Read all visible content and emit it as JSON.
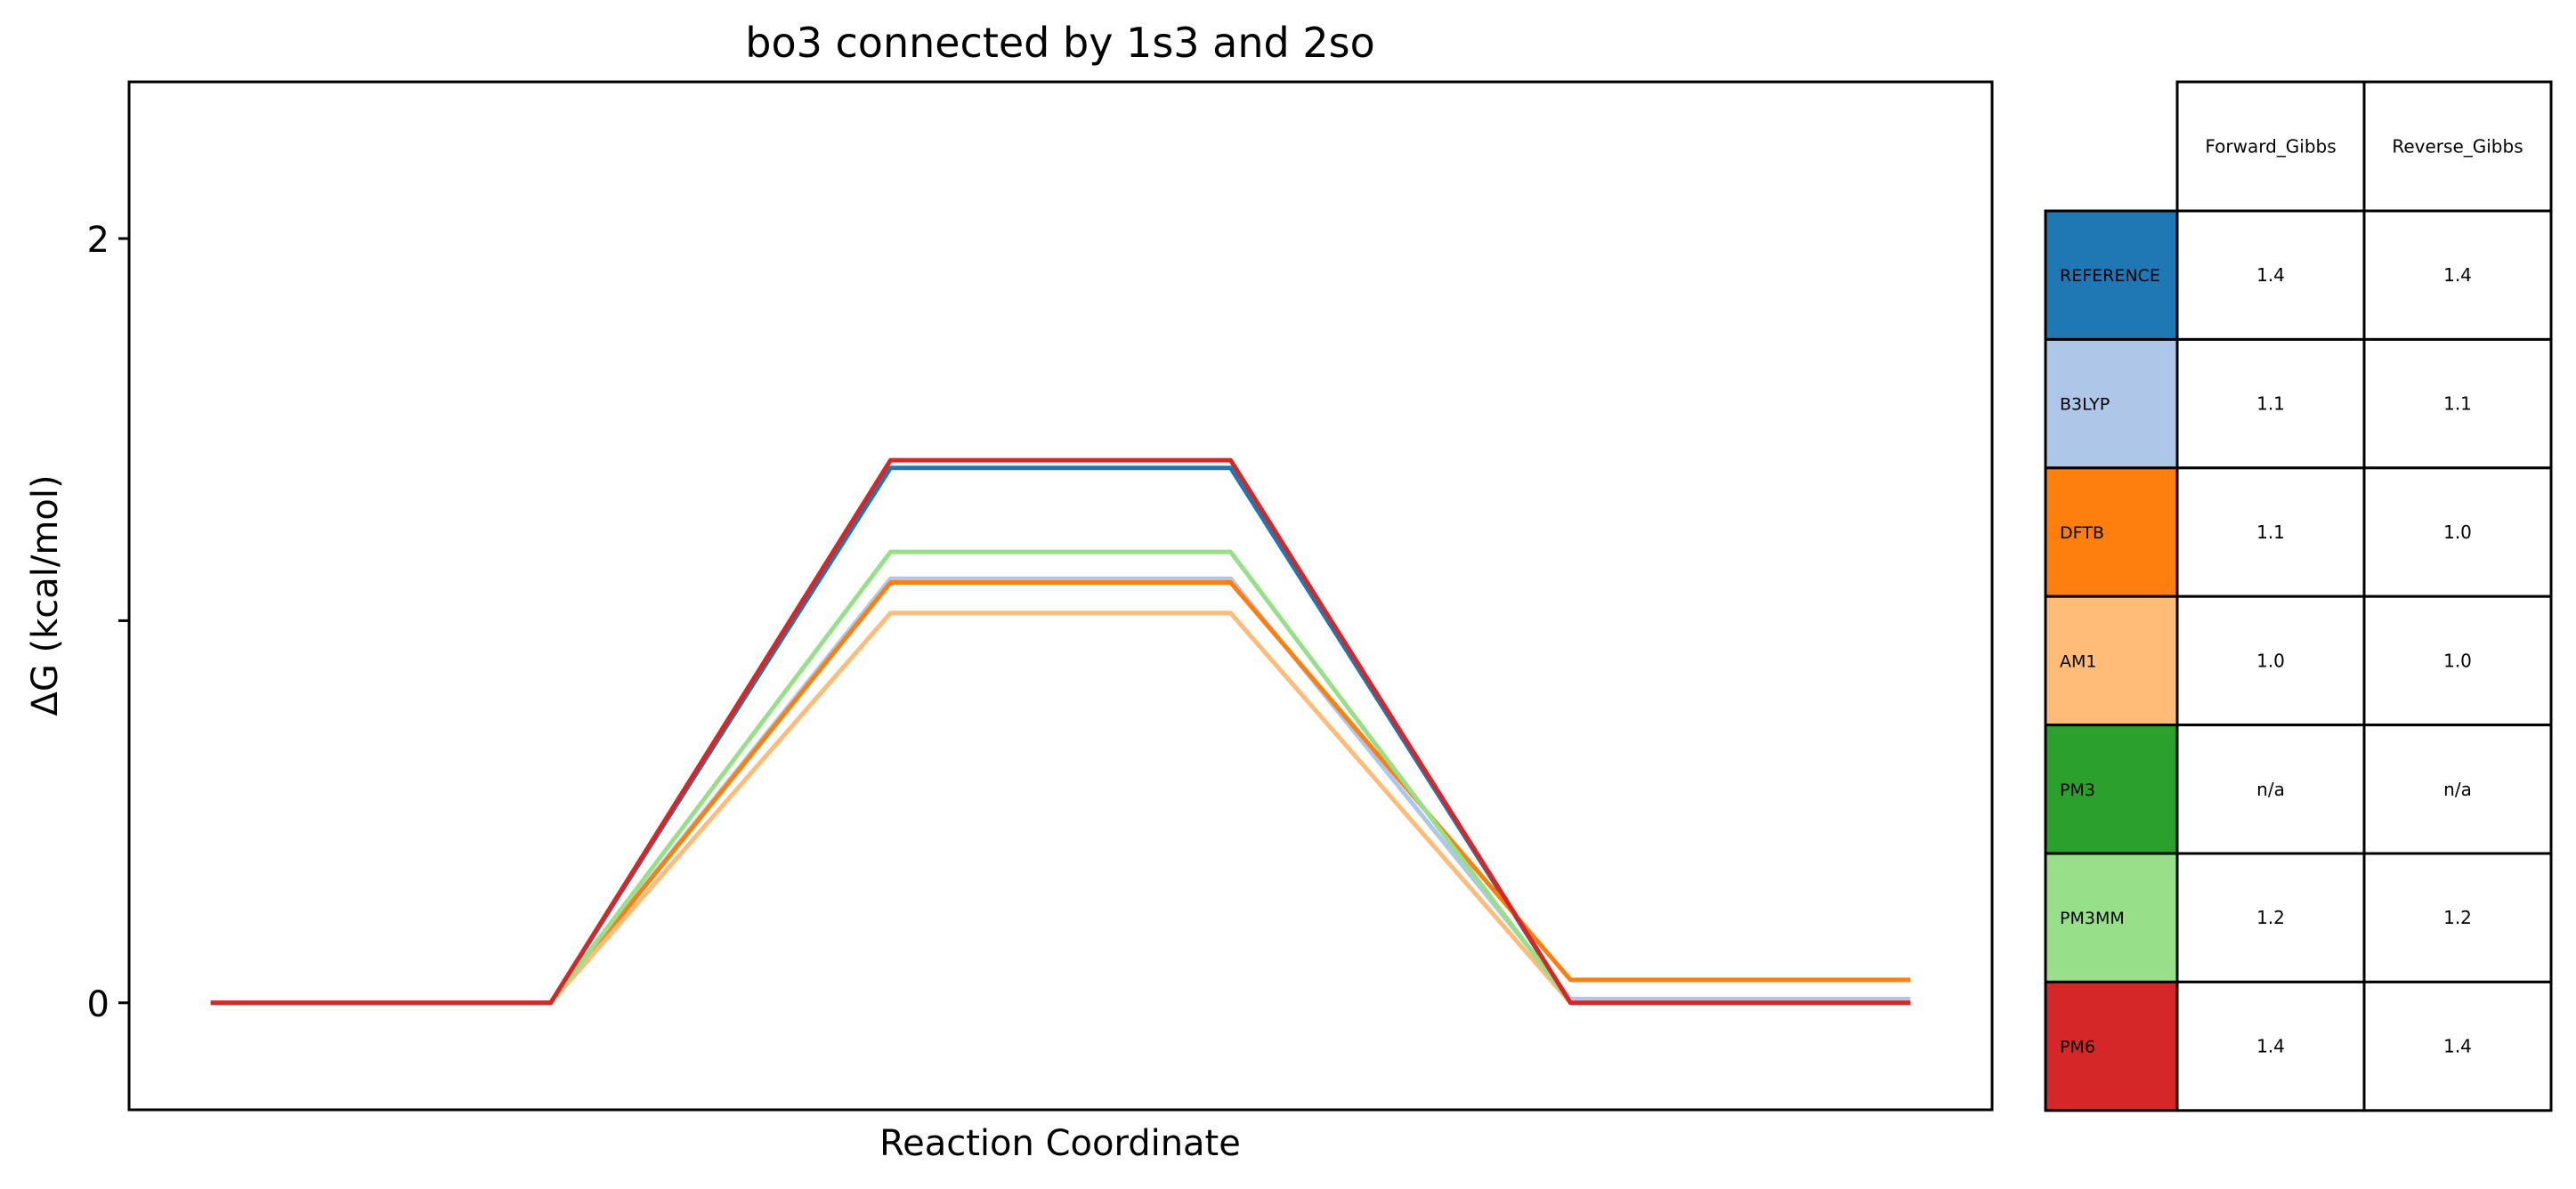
{
  "chart_data": {
    "type": "line",
    "title": "bo3 connected by 1s3 and 2so",
    "xlabel": "Reaction Coordinate",
    "ylabel": "ΔG (kcal/mol)",
    "ylim": [
      -0.28,
      2.41
    ],
    "yticks": [
      {
        "value": 0,
        "label": "0"
      },
      {
        "value": 1,
        "label": ""
      },
      {
        "value": 2,
        "label": "2"
      }
    ],
    "x": [
      0,
      1,
      2,
      3,
      4,
      5
    ],
    "xlim": [
      -0.24,
      5.24
    ],
    "grid": false,
    "series": [
      {
        "name": "REFERENCE",
        "color": "#1f77b4",
        "values": [
          0,
          0,
          1.4,
          1.4,
          0,
          0
        ]
      },
      {
        "name": "B3LYP",
        "color": "#aec7e8",
        "values": [
          0,
          0,
          1.11,
          1.11,
          0.01,
          0.01
        ]
      },
      {
        "name": "DFTB",
        "color": "#ff7f0e",
        "values": [
          0,
          0,
          1.1,
          1.1,
          0.06,
          0.06
        ]
      },
      {
        "name": "AM1",
        "color": "#ffbb78",
        "values": [
          0,
          0,
          1.02,
          1.02,
          0,
          0
        ]
      },
      {
        "name": "PM3MM",
        "color": "#98df8a",
        "values": [
          0,
          0,
          1.18,
          1.18,
          0,
          0
        ]
      },
      {
        "name": "PM6",
        "color": "#d62728",
        "values": [
          0,
          0,
          1.42,
          1.42,
          0,
          0
        ]
      }
    ],
    "table": {
      "columns": [
        "Forward_Gibbs",
        "Reverse_Gibbs"
      ],
      "rows": [
        {
          "label": "REFERENCE",
          "color": "#1f77b4",
          "values": [
            "1.4",
            "1.4"
          ]
        },
        {
          "label": "B3LYP",
          "color": "#aec7e8",
          "values": [
            "1.1",
            "1.1"
          ]
        },
        {
          "label": "DFTB",
          "color": "#ff7f0e",
          "values": [
            "1.1",
            "1.0"
          ]
        },
        {
          "label": "AM1",
          "color": "#ffbb78",
          "values": [
            "1.0",
            "1.0"
          ]
        },
        {
          "label": "PM3",
          "color": "#2ca02c",
          "values": [
            "n/a",
            "n/a"
          ]
        },
        {
          "label": "PM3MM",
          "color": "#98df8a",
          "values": [
            "1.2",
            "1.2"
          ]
        },
        {
          "label": "PM6",
          "color": "#d62728",
          "values": [
            "1.4",
            "1.4"
          ]
        }
      ]
    }
  }
}
